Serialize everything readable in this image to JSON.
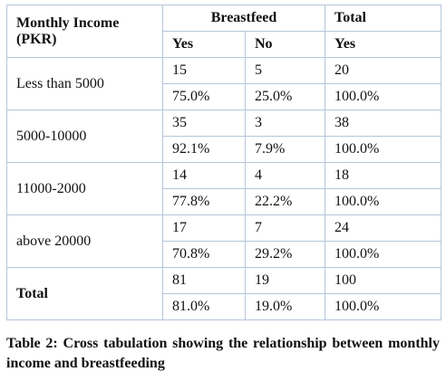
{
  "table": {
    "header": {
      "income": [
        "Monthly Income",
        "(PKR)"
      ],
      "breastfeed": "Breastfeed",
      "total": "Total",
      "yes": "Yes",
      "no": "No",
      "total_yes": "Yes"
    },
    "groups": [
      {
        "label": "Less than 5000",
        "counts": [
          15,
          5,
          20
        ],
        "percents": [
          "75.0%",
          "25.0%",
          "100.0%"
        ]
      },
      {
        "label": "5000-10000",
        "counts": [
          35,
          3,
          38
        ],
        "percents": [
          "92.1%",
          "7.9%",
          "100.0%"
        ]
      },
      {
        "label": "11000-2000",
        "counts": [
          14,
          4,
          18
        ],
        "percents": [
          "77.8%",
          "22.2%",
          "100.0%"
        ]
      },
      {
        "label": "above 20000",
        "counts": [
          17,
          7,
          24
        ],
        "percents": [
          "70.8%",
          "29.2%",
          "100.0%"
        ]
      },
      {
        "label": "Total",
        "counts": [
          81,
          19,
          100
        ],
        "percents": [
          "81.0%",
          "19.0%",
          "100.0%"
        ]
      }
    ]
  },
  "caption": "Table 2: Cross tabulation showing the relationship between monthly income and breastfeeding"
}
